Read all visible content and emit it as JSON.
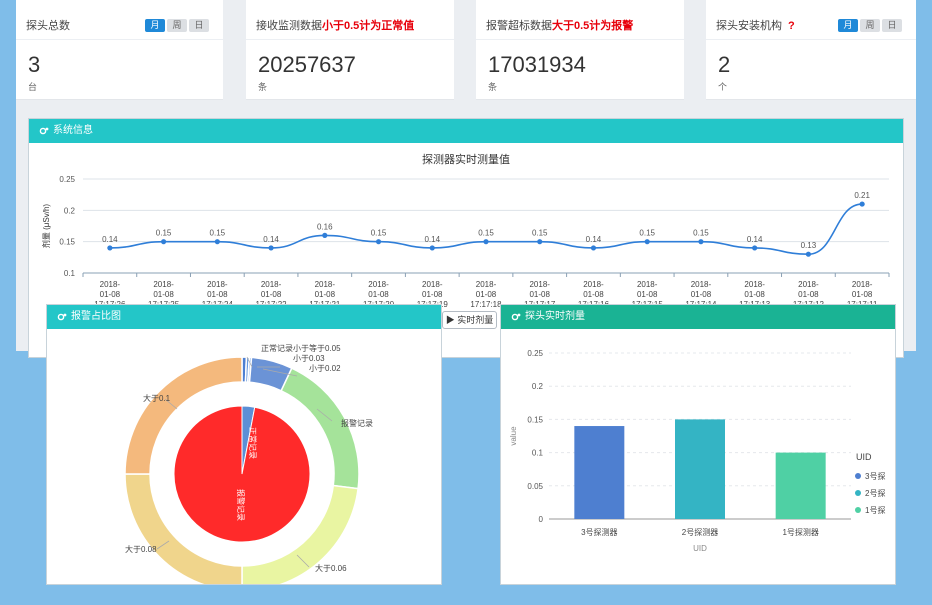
{
  "cards": [
    {
      "title": "探头总数",
      "highlight": "",
      "value": "3",
      "unit": "台",
      "pills": [
        "月",
        "周",
        "日"
      ],
      "active_pill": 0
    },
    {
      "title": "接收监测数据",
      "highlight": "小于0.5计为正常值",
      "value": "20257637",
      "unit": "条",
      "pills": [],
      "active_pill": -1
    },
    {
      "title": "报警超标数据",
      "highlight": "大于0.5计为报警",
      "value": "17031934",
      "unit": "条",
      "pills": [],
      "active_pill": -1
    },
    {
      "title": "探头安装机构",
      "highlight": "",
      "question": "?",
      "value": "2",
      "unit": "个",
      "pills": [
        "月",
        "周",
        "日"
      ],
      "active_pill": 0
    }
  ],
  "system_panel": {
    "title": "系统信息"
  },
  "alarm_panel": {
    "title": "报警占比图"
  },
  "probe_panel": {
    "title": "探头实时剂量"
  },
  "realtime_button": "▶ 实时剂量",
  "colors": {
    "teal": "#23c6c8",
    "green": "#1ab394",
    "line": "#2f7ed8",
    "accent": "#1f89d8"
  },
  "chart_data": [
    {
      "type": "line",
      "title": "探测器实时测量值",
      "ylabel": "剂量 (μSv/h)",
      "ylim": [
        0.1,
        0.25
      ],
      "yticks": [
        0.1,
        0.15,
        0.2,
        0.25
      ],
      "x": [
        "2018-01-08 17:17:26",
        "2018-01-08 17:17:25",
        "2018-01-08 17:17:24",
        "2018-01-08 17:17:22",
        "2018-01-08 17:17:21",
        "2018-01-08 17:17:20",
        "2018-01-08 17:17:19",
        "2018-01-08 17:17:18",
        "2018-01-08 17:17:17",
        "2018-01-08 17:17:16",
        "2018-01-08 17:17:15",
        "2018-01-08 17:17:14",
        "2018-01-08 17:17:13",
        "2018-01-08 17:17:12",
        "2018-01-08 17:17:11"
      ],
      "values": [
        0.14,
        0.15,
        0.15,
        0.14,
        0.16,
        0.15,
        0.14,
        0.15,
        0.15,
        0.14,
        0.15,
        0.15,
        0.14,
        0.13,
        0.21
      ],
      "grid": true
    },
    {
      "type": "pie",
      "inner": [
        {
          "name": "正常记录",
          "value": 3,
          "color": "#5b8fd6"
        },
        {
          "name": "报警记录",
          "value": 97,
          "color": "#ff2a2a"
        }
      ],
      "outer": [
        {
          "name": "正常记录小于等于0.05",
          "value": 0.6,
          "color": "#4d7fd2"
        },
        {
          "name": "小于0.03",
          "value": 0.4,
          "color": "#6a9be0"
        },
        {
          "name": "小于0.02",
          "value": 0.3,
          "color": "#8fb5ea"
        },
        {
          "name": "小于0.02b",
          "value": 5.7,
          "color": "#6b93d6"
        },
        {
          "name": "报警记录",
          "value": 20,
          "color": "#a5e39a"
        },
        {
          "name": "大于0.06",
          "value": 23,
          "color": "#e9f5a2"
        },
        {
          "name": "大于0.08",
          "value": 25,
          "color": "#f0d58c"
        },
        {
          "name": "大于0.1",
          "value": 25,
          "color": "#f4b97d"
        }
      ],
      "labels": [
        "正常记录小于等于0.05",
        "小于0.03",
        "小于0.02",
        "报警记录",
        "大于0.06",
        "大于0.08",
        "大于0.1"
      ]
    },
    {
      "type": "bar",
      "categories": [
        "3号探测器",
        "2号探测器",
        "1号探测器"
      ],
      "values": [
        0.14,
        0.15,
        0.1
      ],
      "colors": [
        "#4e7fd0",
        "#34b4c4",
        "#4fd0a4"
      ],
      "xlabel": "UID",
      "ylabel": "value",
      "ylim": [
        0,
        0.25
      ],
      "yticks": [
        0,
        0.05,
        0.1,
        0.15,
        0.2,
        0.25
      ],
      "legend": {
        "title": "UID",
        "items": [
          "3号探",
          "2号探",
          "1号探"
        ],
        "position": "right"
      },
      "grid": true
    }
  ]
}
